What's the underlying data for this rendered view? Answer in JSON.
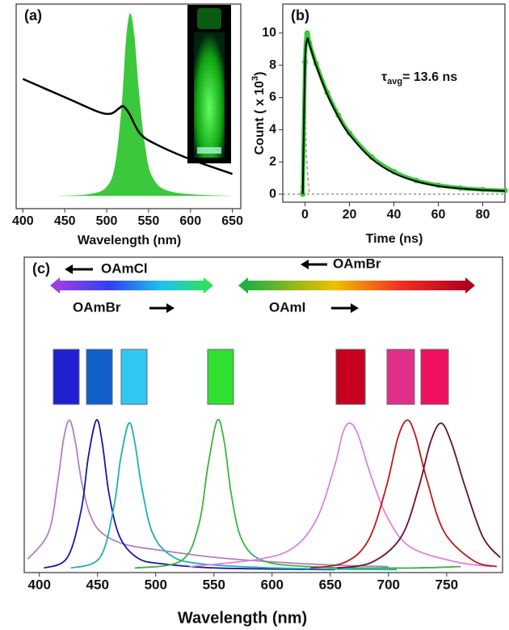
{
  "chart_data": [
    {
      "type": "line",
      "label": "(a)",
      "xlabel": "Wavelength (nm)",
      "xlim": [
        392,
        660
      ],
      "ylim": [
        -0.07,
        1.05
      ],
      "xticks": [
        400,
        450,
        500,
        550,
        600,
        650
      ],
      "series": [
        {
          "color": "#3cc83c",
          "fill": true,
          "x": [
            440,
            480,
            500,
            510,
            518,
            523,
            528,
            533,
            538,
            545,
            555,
            580,
            650
          ],
          "values": [
            0,
            0.01,
            0.05,
            0.17,
            0.5,
            0.85,
            1.0,
            0.88,
            0.6,
            0.3,
            0.1,
            0.02,
            0
          ]
        },
        {
          "color": "#000000",
          "width": 2.5,
          "x": [
            400,
            430,
            460,
            490,
            505,
            515,
            520,
            527,
            540,
            560,
            600,
            650
          ],
          "values": [
            0.64,
            0.58,
            0.52,
            0.46,
            0.45,
            0.48,
            0.49,
            0.45,
            0.34,
            0.28,
            0.2,
            0.12
          ]
        }
      ]
    },
    {
      "type": "line",
      "label": "(b)",
      "xlabel": "Time (ns)",
      "ylabel": [
        "Count ( x 10",
        "3",
        ")"
      ],
      "annotation": [
        "τ",
        "avg",
        "= 13.6 ns"
      ],
      "xlim": [
        -10,
        90
      ],
      "ylim": [
        -0.5,
        11.8
      ],
      "xticks": [
        0,
        20,
        40,
        60,
        80
      ],
      "yticks": [
        0,
        2,
        4,
        6,
        8,
        10
      ],
      "zero_line": true,
      "series": [
        {
          "color": "#999999",
          "dash": true,
          "width": 1.5,
          "x": [
            -2,
            -0.5,
            0,
            0.5,
            2
          ],
          "values": [
            0,
            3,
            10,
            3,
            0
          ]
        },
        {
          "color": "#3cc83c",
          "marker": "circle",
          "width": 5,
          "x": [
            -1,
            0,
            1,
            2,
            5,
            10,
            15,
            20,
            30,
            40,
            50,
            60,
            70,
            80,
            90
          ],
          "values": [
            0,
            8.2,
            10,
            9.4,
            8.1,
            6.3,
            4.9,
            3.8,
            2.3,
            1.4,
            0.85,
            0.55,
            0.38,
            0.28,
            0.22
          ]
        },
        {
          "color": "#000000",
          "width": 2,
          "x": [
            -1,
            0,
            1,
            2,
            5,
            10,
            15,
            20,
            30,
            40,
            50,
            60,
            70,
            80,
            90
          ],
          "values": [
            0,
            8,
            9.6,
            9.3,
            8.0,
            6.2,
            4.8,
            3.7,
            2.2,
            1.3,
            0.8,
            0.5,
            0.35,
            0.25,
            0.2
          ]
        }
      ]
    },
    {
      "type": "line",
      "label": "(c)",
      "xlabel": "Wavelength (nm)",
      "labels": [
        "OAmCl",
        "OAmBr",
        "OAmBr",
        "OAmI"
      ],
      "xlim": [
        387,
        798
      ],
      "ylim": [
        -0.02,
        2.09
      ],
      "xticks": [
        400,
        450,
        500,
        550,
        600,
        650,
        700,
        750
      ],
      "series": [
        {
          "color": "#b07fc7",
          "x": [
            390,
            408,
            416,
            421,
            426,
            431,
            436,
            443,
            453,
            473,
            503,
            553,
            603,
            653,
            700
          ],
          "values": [
            0.07,
            0.25,
            0.6,
            0.88,
            1.0,
            0.85,
            0.6,
            0.38,
            0.25,
            0.17,
            0.13,
            0.08,
            0.05,
            0.03,
            0.02
          ]
        },
        {
          "color": "#1a1aa0",
          "x": [
            404,
            424,
            436,
            442,
            449,
            454,
            460,
            469,
            484,
            504,
            554,
            654
          ],
          "values": [
            0.01,
            0.08,
            0.4,
            0.75,
            1.0,
            0.85,
            0.5,
            0.22,
            0.08,
            0.04,
            0.01,
            0
          ]
        },
        {
          "color": "#20b0b0",
          "x": [
            427,
            452,
            464,
            470,
            477,
            482,
            488,
            497,
            512,
            537,
            607,
            707
          ],
          "values": [
            0.01,
            0.08,
            0.42,
            0.75,
            0.98,
            0.85,
            0.55,
            0.25,
            0.1,
            0.04,
            0.01,
            0
          ]
        },
        {
          "color": "#3cb43c",
          "x": [
            482,
            522,
            537,
            545,
            553,
            559,
            565,
            574,
            592,
            632,
            712,
            762
          ],
          "values": [
            0.01,
            0.06,
            0.3,
            0.7,
            1.0,
            0.85,
            0.5,
            0.2,
            0.06,
            0.02,
            0.01,
            0.02
          ]
        },
        {
          "color": "#e080e0",
          "x": [
            529,
            589,
            619,
            639,
            654,
            661,
            667,
            674,
            684,
            699,
            719,
            759,
            789
          ],
          "values": [
            0.02,
            0.07,
            0.15,
            0.35,
            0.7,
            0.92,
            0.98,
            0.9,
            0.65,
            0.35,
            0.15,
            0.05,
            0.02
          ]
        },
        {
          "color": "#c01818",
          "x": [
            633,
            663,
            683,
            698,
            708,
            716,
            723,
            733,
            748,
            773,
            793
          ],
          "values": [
            0.01,
            0.05,
            0.2,
            0.55,
            0.88,
            1.0,
            0.9,
            0.6,
            0.25,
            0.06,
            0.02
          ]
        },
        {
          "color": "#6a1030",
          "x": [
            656,
            686,
            711,
            726,
            736,
            745,
            754,
            766,
            781,
            796
          ],
          "values": [
            0.01,
            0.05,
            0.22,
            0.55,
            0.85,
            0.98,
            0.85,
            0.55,
            0.22,
            0.08
          ]
        }
      ]
    }
  ]
}
